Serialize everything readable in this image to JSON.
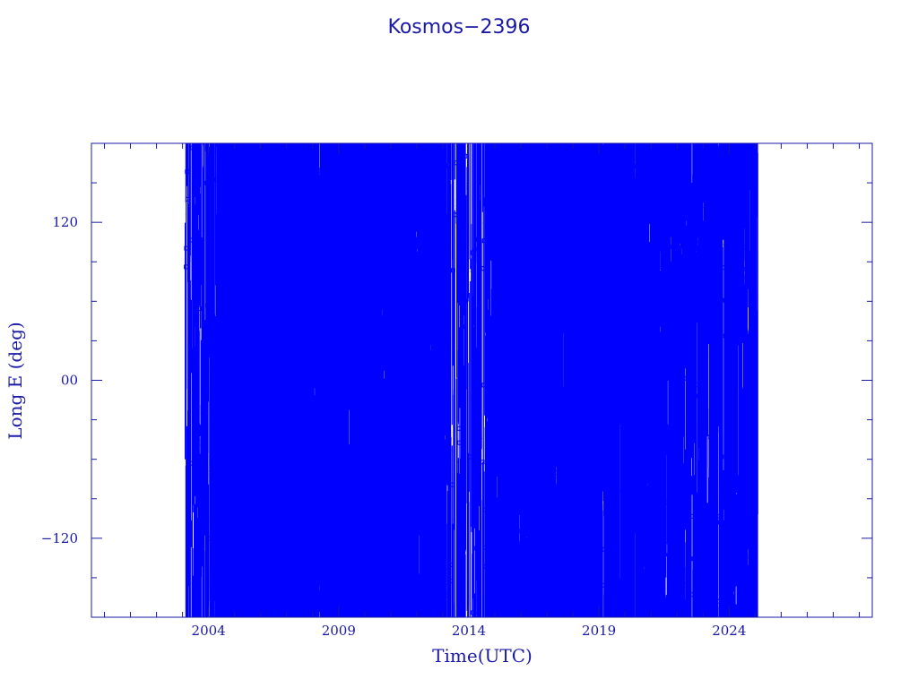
{
  "chart_data": {
    "type": "line",
    "title": "Kosmos−2396",
    "xlabel": "Time(UTC)",
    "ylabel": "Long E (deg)",
    "xlim": [
      1999.5,
      2029.5
    ],
    "ylim": [
      -180,
      180
    ],
    "x_ticks": [
      {
        "value": 2004,
        "label": "2004"
      },
      {
        "value": 2009,
        "label": "2009"
      },
      {
        "value": 2014,
        "label": "2014"
      },
      {
        "value": 2019,
        "label": "2019"
      },
      {
        "value": 2024,
        "label": "2024"
      }
    ],
    "y_ticks": [
      {
        "value": 120,
        "label": "120"
      },
      {
        "value": 0,
        "label": "00"
      },
      {
        "value": -120,
        "label": "−120"
      }
    ],
    "series_color": "#0000ff",
    "axis_color": "#1a1aa6",
    "grid": false,
    "series": [
      {
        "x_range": [
          2003.1,
          2025.1
        ],
        "y_range": [
          -180,
          180
        ],
        "density_profile": [
          {
            "x": 2003.1,
            "density": 0.35
          },
          {
            "x": 2004.1,
            "density": 0.35
          },
          {
            "x": 2004.4,
            "density": 1.0
          },
          {
            "x": 2009.5,
            "density": 0.85
          },
          {
            "x": 2012.8,
            "density": 0.85
          },
          {
            "x": 2013.2,
            "density": 0.3
          },
          {
            "x": 2014.8,
            "density": 0.45
          },
          {
            "x": 2015.3,
            "density": 0.9
          },
          {
            "x": 2019.8,
            "density": 0.8
          },
          {
            "x": 2022.0,
            "density": 0.6
          },
          {
            "x": 2025.1,
            "density": 0.55
          }
        ]
      }
    ]
  }
}
